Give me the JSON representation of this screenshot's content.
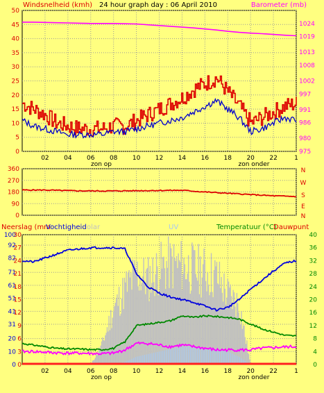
{
  "colors": {
    "bg": "#ffff80",
    "wind": "#dd0000",
    "gust": "#0000cc",
    "baro": "#ff00ff",
    "dir": "#dd0000",
    "humid": "#0000dd",
    "temp": "#008800",
    "dew": "#ff00ff",
    "solar": "#c0c0c0",
    "uv": "#a8c8f0",
    "rain": "#ff2020",
    "grid": "#999999"
  },
  "header": {
    "left": "Windsnelheid (kmh)",
    "center": "24 hour graph day : 06 April 2010",
    "right": "Barometer (mb)"
  },
  "panel2": {
    "right_letters": [
      "N",
      "W",
      "S",
      "E",
      "N"
    ]
  },
  "panel3": {
    "label_neerslag": "Neerslag (mm",
    "label_vocht": "Vochtigheid",
    "label_solar": "olar",
    "label_uv": "UV",
    "label_temp": "Temperatuur (°C)",
    "label_dew": "Dauwpunt"
  },
  "x_axis": {
    "ticks": [
      "02",
      "04",
      "06",
      "08",
      "10",
      "12",
      "14",
      "16",
      "18",
      "20",
      "22",
      "1"
    ],
    "sunrise": "zon op",
    "sunset": "zon onder"
  },
  "chart_data": [
    {
      "type": "line",
      "title": "24 hour graph day : 06 April 2010",
      "ylabel": "Windsnelheid (kmh)",
      "ylim": [
        0,
        50
      ],
      "yticks": [
        0,
        5,
        10,
        15,
        20,
        25,
        30,
        35,
        40,
        45,
        50
      ],
      "y2label": "Barometer (mb)",
      "y2lim": [
        975,
        1029
      ],
      "y2ticks": [
        975,
        980,
        986,
        991,
        997,
        1002,
        1008,
        1013,
        1019,
        1024
      ],
      "x": [
        0,
        1,
        2,
        3,
        4,
        5,
        6,
        7,
        8,
        9,
        10,
        11,
        12,
        13,
        14,
        15,
        16,
        17,
        18,
        19,
        20,
        21,
        22,
        23,
        24
      ],
      "series": [
        {
          "name": "Windsnelheid",
          "values": [
            17,
            15,
            13,
            10,
            9,
            8,
            8,
            8,
            9,
            9,
            11,
            13,
            15,
            17,
            19,
            22,
            24,
            26,
            21,
            16,
            10,
            12,
            14,
            16,
            17
          ]
        },
        {
          "name": "",
          "values": [
            11,
            9,
            8,
            7,
            6,
            6,
            6,
            6,
            7,
            7,
            8,
            9,
            10,
            11,
            12,
            14,
            16,
            18,
            15,
            12,
            7,
            8,
            10,
            12,
            11
          ]
        },
        {
          "name": "Barometer",
          "values": [
            1024.5,
            1024.5,
            1024.4,
            1024.3,
            1024.2,
            1024.1,
            1024.0,
            1024.0,
            1024.0,
            1023.9,
            1023.8,
            1023.5,
            1023.2,
            1022.9,
            1022.6,
            1022.3,
            1021.9,
            1021.5,
            1021.0,
            1020.6,
            1020.3,
            1020.1,
            1019.8,
            1019.5,
            1019.3
          ]
        }
      ]
    },
    {
      "type": "line",
      "ylabel": "",
      "ylim": [
        0,
        360
      ],
      "yticks": [
        0,
        90,
        180,
        270,
        360
      ],
      "x": [
        0,
        2,
        4,
        6,
        8,
        10,
        12,
        14,
        16,
        18,
        20,
        22,
        24
      ],
      "series": [
        {
          "name": "",
          "values": [
            195,
            195,
            190,
            188,
            188,
            190,
            192,
            193,
            180,
            170,
            160,
            150,
            145
          ]
        }
      ]
    },
    {
      "type": "line",
      "ylim_humidity": [
        0,
        100
      ],
      "yticks_humidity": [
        0,
        10,
        20,
        31,
        41,
        51,
        61,
        71,
        82,
        92,
        100
      ],
      "ylim_rain": [
        0,
        30
      ],
      "yticks_rain": [
        0,
        3,
        6,
        9,
        12,
        15,
        18,
        21,
        24,
        27,
        30
      ],
      "ylim_temp": [
        0,
        40
      ],
      "yticks_temp": [
        0,
        4,
        8,
        12,
        16,
        20,
        24,
        28,
        32,
        36,
        40
      ],
      "x": [
        0,
        1,
        2,
        3,
        4,
        5,
        6,
        7,
        8,
        9,
        10,
        11,
        12,
        13,
        14,
        15,
        16,
        17,
        18,
        19,
        20,
        21,
        22,
        23,
        24
      ],
      "series": [
        {
          "name": "Vochtigheid",
          "values": [
            80,
            79,
            82,
            85,
            88,
            89,
            90,
            90,
            90,
            89,
            70,
            60,
            55,
            52,
            50,
            48,
            45,
            42,
            44,
            50,
            58,
            65,
            72,
            78,
            80
          ]
        },
        {
          "name": "Temperatuur",
          "values": [
            6.5,
            6.0,
            5.5,
            5.0,
            4.8,
            4.8,
            4.6,
            4.6,
            5.0,
            7.0,
            12,
            12.5,
            13,
            13.5,
            15,
            14.5,
            15,
            14.8,
            14.5,
            14,
            12.5,
            11,
            10,
            9,
            8.8
          ]
        },
        {
          "name": "Dauwpunt",
          "values": [
            4,
            4,
            3.8,
            3.6,
            3.5,
            3.5,
            3.4,
            3.3,
            3.5,
            4.5,
            6.5,
            6.5,
            6.0,
            5.5,
            6.0,
            5.5,
            5.0,
            4.5,
            4.5,
            4.5,
            4.5,
            5.0,
            5.2,
            5.4,
            5.5
          ]
        },
        {
          "name": "Solar",
          "values": [
            0,
            0,
            0,
            0,
            0,
            0,
            0,
            20,
            55,
            75,
            90,
            85,
            95,
            100,
            98,
            95,
            92,
            88,
            70,
            60,
            0,
            0,
            0,
            0,
            0
          ]
        },
        {
          "name": "UV",
          "values": [
            0,
            0,
            0,
            0,
            0,
            0,
            0,
            0,
            0,
            2,
            6,
            8,
            10,
            12,
            14,
            14,
            13,
            12,
            10,
            6,
            0,
            0,
            0,
            0,
            0
          ]
        },
        {
          "name": "Neerslag",
          "values": [
            0,
            0,
            0,
            0,
            0,
            0,
            0,
            0,
            0,
            0,
            0,
            0,
            0,
            0,
            0,
            0,
            0,
            0,
            0,
            0,
            0,
            0,
            0,
            0,
            0
          ]
        }
      ]
    }
  ]
}
